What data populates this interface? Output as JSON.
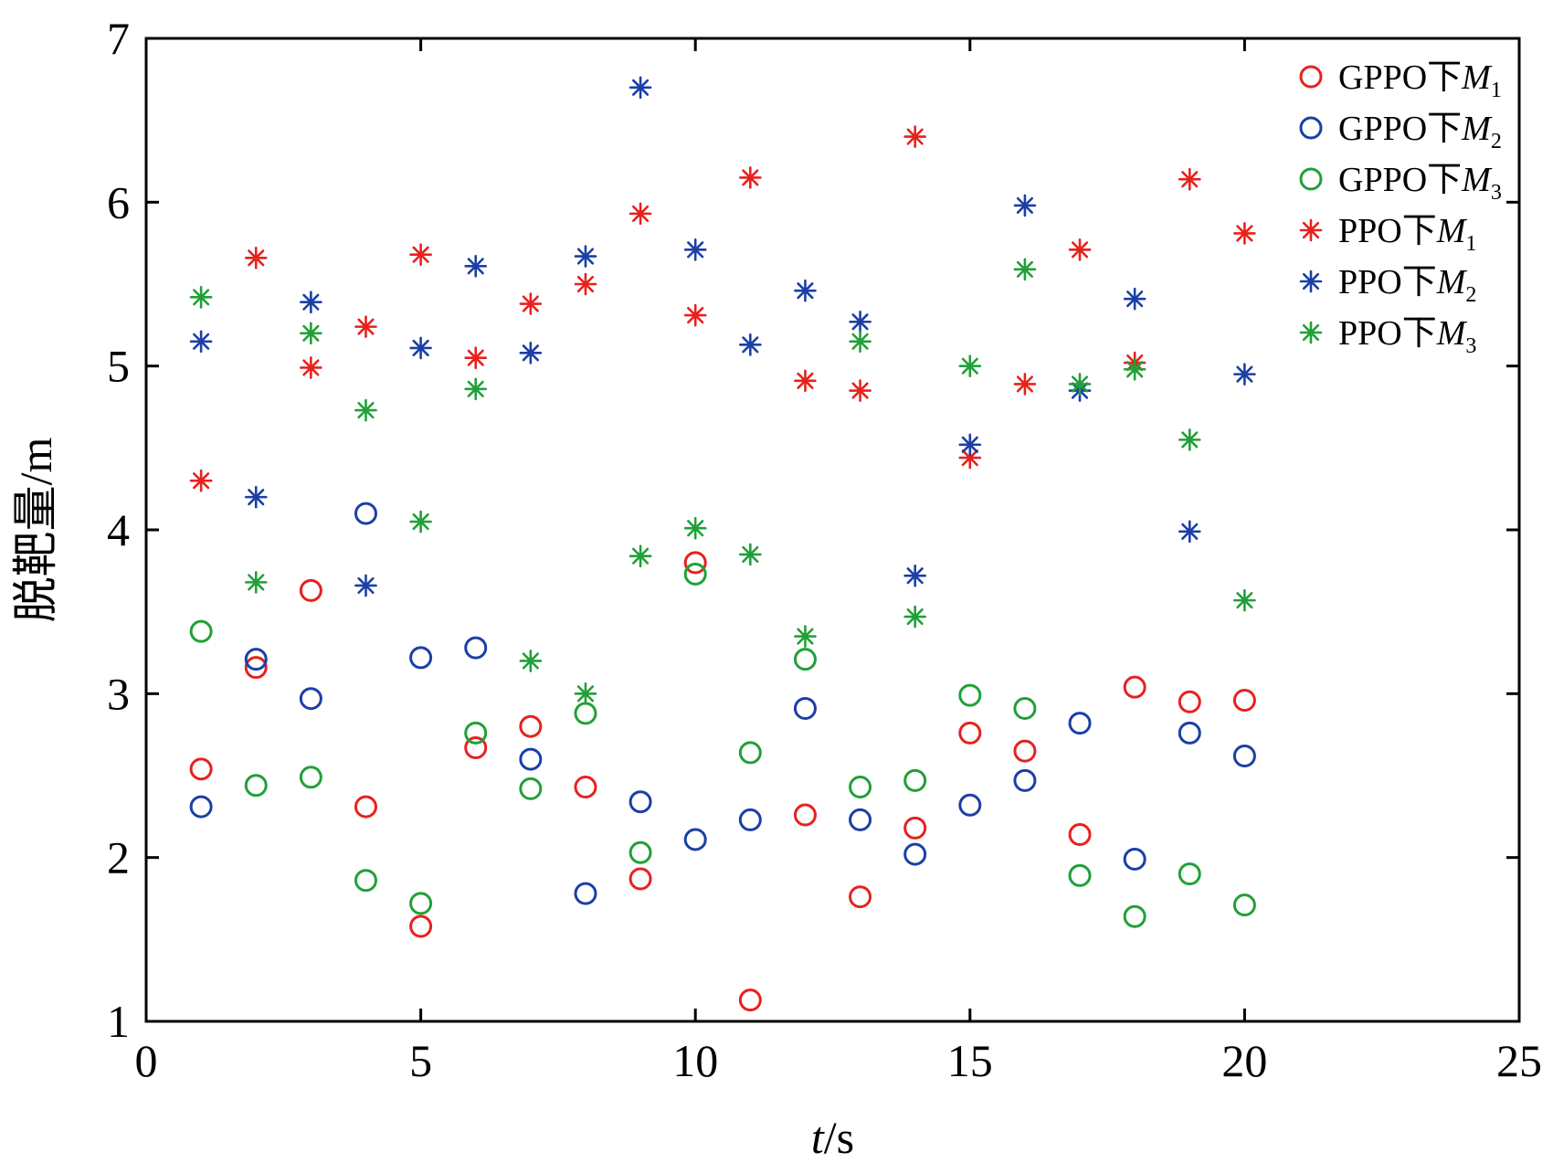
{
  "chart_data": {
    "type": "scatter",
    "xlabel": {
      "italic": "t",
      "rest": "/s"
    },
    "ylabel": "脱靶量/m",
    "xlim": [
      0,
      25
    ],
    "ylim": [
      1,
      7
    ],
    "xticks": [
      0,
      5,
      10,
      15,
      20,
      25
    ],
    "yticks": [
      1,
      2,
      3,
      4,
      5,
      6,
      7
    ],
    "grid": false,
    "legend_position": "top-right",
    "x": [
      1,
      2,
      3,
      4,
      5,
      6,
      7,
      8,
      9,
      10,
      11,
      12,
      13,
      14,
      15,
      16,
      17,
      18,
      19,
      20
    ],
    "series": [
      {
        "name": "GPPO下M1",
        "label_prefix": "GPPO下",
        "label_var": "M",
        "label_sub": "1",
        "marker": "circle",
        "color": "#e8211d",
        "values": [
          2.54,
          3.16,
          3.63,
          2.31,
          1.58,
          2.67,
          2.8,
          2.43,
          1.87,
          3.8,
          1.13,
          2.26,
          1.76,
          2.18,
          2.76,
          2.65,
          2.14,
          3.04,
          2.95,
          2.96
        ]
      },
      {
        "name": "GPPO下M2",
        "label_prefix": "GPPO下",
        "label_var": "M",
        "label_sub": "2",
        "marker": "circle",
        "color": "#1b3fa6",
        "values": [
          2.31,
          3.21,
          2.97,
          4.1,
          3.22,
          3.28,
          2.6,
          1.78,
          2.34,
          2.11,
          2.23,
          2.91,
          2.23,
          2.02,
          2.32,
          2.47,
          2.82,
          1.99,
          2.76,
          2.62
        ]
      },
      {
        "name": "GPPO下M3",
        "label_prefix": "GPPO下",
        "label_var": "M",
        "label_sub": "3",
        "marker": "circle",
        "color": "#21a038",
        "values": [
          3.38,
          2.44,
          2.49,
          1.86,
          1.72,
          2.76,
          2.42,
          2.88,
          2.03,
          3.73,
          2.64,
          3.21,
          2.43,
          2.47,
          2.99,
          2.91,
          1.89,
          1.64,
          1.9,
          1.71
        ]
      },
      {
        "name": "PPO下M1",
        "label_prefix": "PPO下",
        "label_var": "M",
        "label_sub": "1",
        "marker": "asterisk",
        "color": "#e8211d",
        "values": [
          4.3,
          5.66,
          4.99,
          5.24,
          5.68,
          5.05,
          5.38,
          5.5,
          5.93,
          5.31,
          6.15,
          4.91,
          4.85,
          6.4,
          4.44,
          4.89,
          5.71,
          5.02,
          6.14,
          5.81
        ]
      },
      {
        "name": "PPO下M2",
        "label_prefix": "PPO下",
        "label_var": "M",
        "label_sub": "2",
        "marker": "asterisk",
        "color": "#1b3fa6",
        "values": [
          5.15,
          4.2,
          5.39,
          3.66,
          5.11,
          5.61,
          5.08,
          5.67,
          6.7,
          5.71,
          5.13,
          5.46,
          5.27,
          3.72,
          4.52,
          5.98,
          4.85,
          5.41,
          3.99,
          4.95
        ]
      },
      {
        "name": "PPO下M3",
        "label_prefix": "PPO下",
        "label_var": "M",
        "label_sub": "3",
        "marker": "asterisk",
        "color": "#21a038",
        "values": [
          5.42,
          3.68,
          5.2,
          4.73,
          4.05,
          4.86,
          3.2,
          3.0,
          3.84,
          4.01,
          3.85,
          3.35,
          5.15,
          3.47,
          5.0,
          5.59,
          4.89,
          4.98,
          4.55,
          3.57
        ]
      }
    ]
  }
}
